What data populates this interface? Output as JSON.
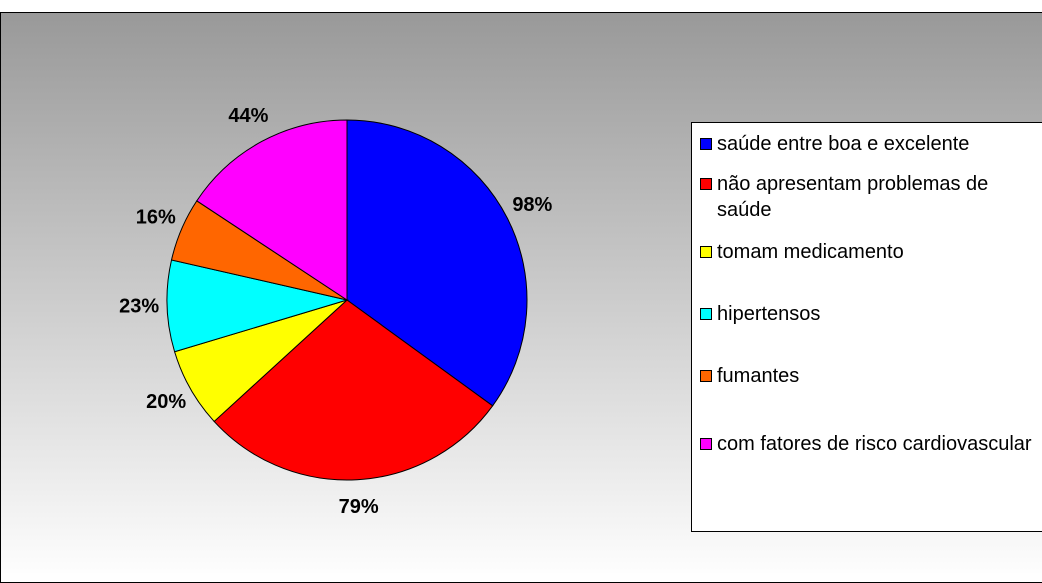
{
  "chart_data": {
    "type": "pie",
    "categories": [
      "saúde entre boa e excelente",
      "não apresentam problemas de saúde",
      "tomam medicamento",
      "hipertensos",
      "fumantes",
      "com fatores de risco cardiovascular"
    ],
    "values": [
      98,
      79,
      20,
      23,
      16,
      44
    ],
    "value_labels": [
      "98%",
      "79%",
      "20%",
      "23%",
      "16%",
      "44%"
    ],
    "colors": [
      "#0000ff",
      "#ff0000",
      "#ffff00",
      "#00ffff",
      "#ff6600",
      "#ff00ff"
    ],
    "legend": "right"
  }
}
